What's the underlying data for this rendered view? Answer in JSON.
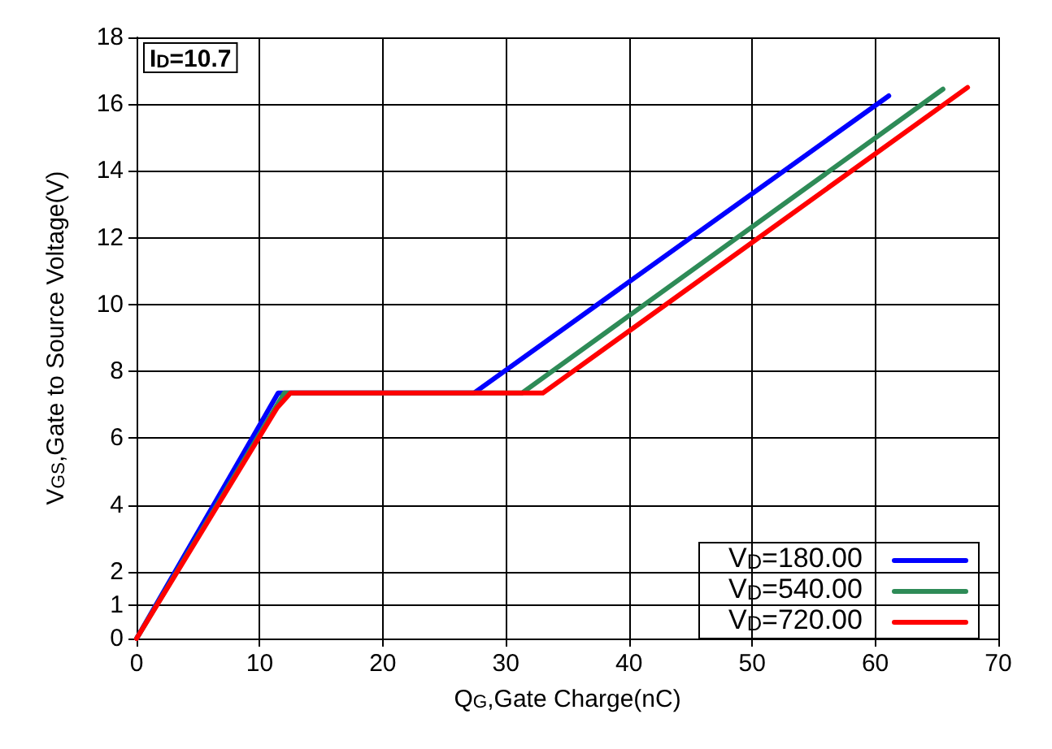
{
  "chart_data": {
    "type": "line",
    "xlabel": "Q$_{G}$,Gate Charge(nC)",
    "ylabel": "V$_{GS}$,Gate to Source Voltage(V)",
    "annotations": [
      "I$_{D}$=10.7"
    ],
    "series": [
      {
        "name": "V$_{D}$=180.00",
        "color": "#0000ff",
        "x": [
          0,
          11.5,
          27.4,
          61.1
        ],
        "values": [
          0,
          7.35,
          7.35,
          16.25
        ]
      },
      {
        "name": "V$_{D}$=540.00",
        "color": "#2e8b57",
        "x": [
          0,
          12.0,
          31.3,
          65.5
        ],
        "values": [
          0,
          7.35,
          7.35,
          16.45
        ]
      },
      {
        "name": "V$_{D}$=720.00",
        "color": "#ff0000",
        "x": [
          0,
          11.4,
          12.5,
          33.0,
          67.5
        ],
        "values": [
          0,
          6.9,
          7.35,
          7.35,
          16.5
        ]
      }
    ],
    "xlim": [
      0,
      70
    ],
    "xticks": [
      0,
      10,
      20,
      30,
      40,
      50,
      60,
      70
    ],
    "ylim": [
      0,
      18
    ],
    "yticks": [
      0,
      1,
      2,
      4,
      6,
      8,
      10,
      12,
      14,
      16,
      18
    ],
    "grid": true,
    "legend": "bottom right",
    "marker": "none",
    "line_style": "solid"
  }
}
